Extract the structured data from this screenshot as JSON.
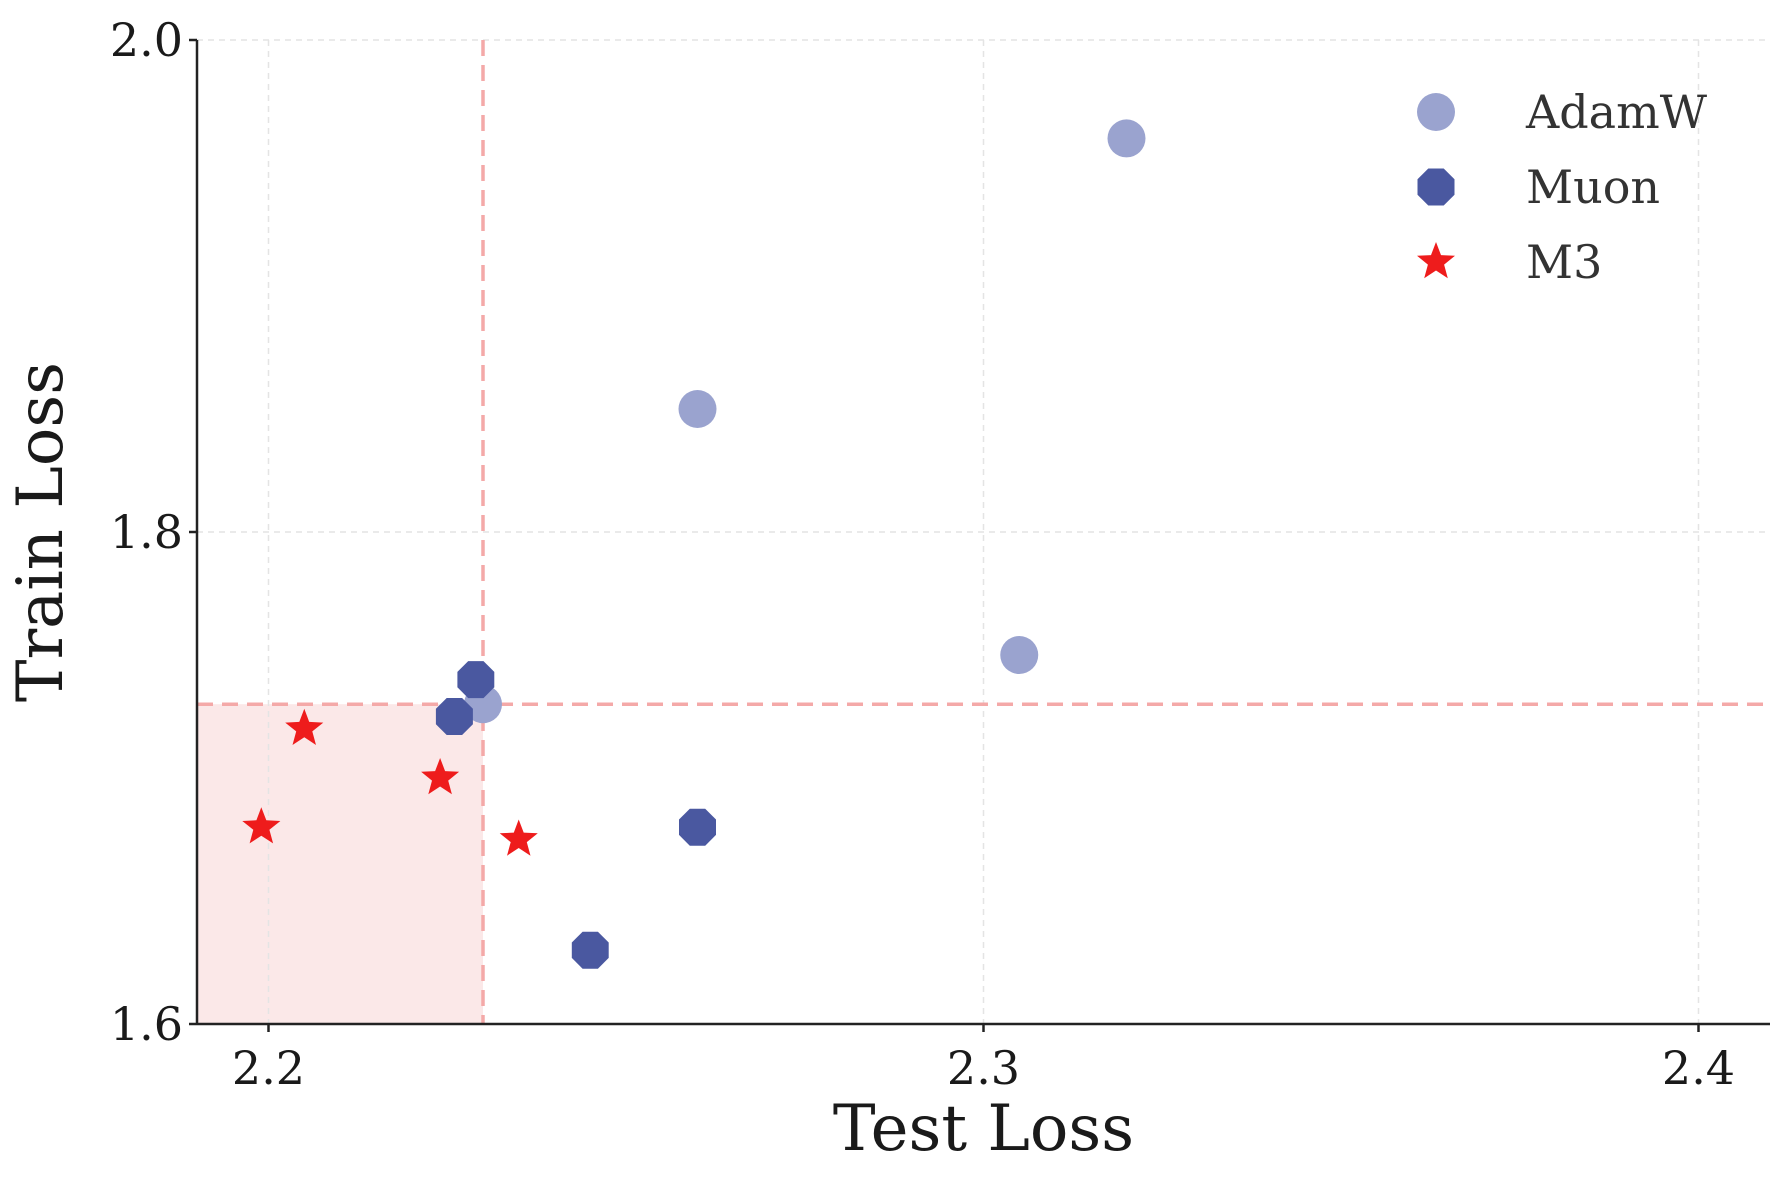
{
  "chart_data": {
    "type": "scatter",
    "title": "",
    "xlabel": "Test Loss",
    "ylabel": "Train Loss",
    "xlim": [
      2.19,
      2.41
    ],
    "ylim": [
      1.6,
      2.0
    ],
    "x_ticks": [
      {
        "value": 2.2,
        "label": "2.2"
      },
      {
        "value": 2.3,
        "label": "2.3"
      },
      {
        "value": 2.4,
        "label": "2.4"
      }
    ],
    "y_ticks": [
      {
        "value": 1.6,
        "label": "1.6"
      },
      {
        "value": 1.8,
        "label": "1.8"
      },
      {
        "value": 2.0,
        "label": "2.0"
      }
    ],
    "grid": true,
    "legend_position": "top-right",
    "reference_lines": {
      "x": 2.23,
      "y": 1.73,
      "color": "#f4a9a8"
    },
    "shaded_region": {
      "x": [
        2.19,
        2.23
      ],
      "y": [
        1.6,
        1.73
      ],
      "color": "#fbe8e8"
    },
    "series": [
      {
        "name": "AdamW",
        "marker": "circle",
        "color": "#9aa3cf",
        "points": [
          {
            "x": 2.32,
            "y": 1.96
          },
          {
            "x": 2.26,
            "y": 1.85
          },
          {
            "x": 2.305,
            "y": 1.75
          },
          {
            "x": 2.23,
            "y": 1.73
          }
        ]
      },
      {
        "name": "Muon",
        "marker": "octagon",
        "color": "#4a58a0",
        "points": [
          {
            "x": 2.229,
            "y": 1.74
          },
          {
            "x": 2.226,
            "y": 1.725
          },
          {
            "x": 2.26,
            "y": 1.68
          },
          {
            "x": 2.245,
            "y": 1.63
          }
        ]
      },
      {
        "name": "M3",
        "marker": "star",
        "color": "#ee1c1c",
        "points": [
          {
            "x": 2.205,
            "y": 1.72
          },
          {
            "x": 2.224,
            "y": 1.7
          },
          {
            "x": 2.199,
            "y": 1.68
          },
          {
            "x": 2.235,
            "y": 1.675
          }
        ]
      }
    ]
  }
}
